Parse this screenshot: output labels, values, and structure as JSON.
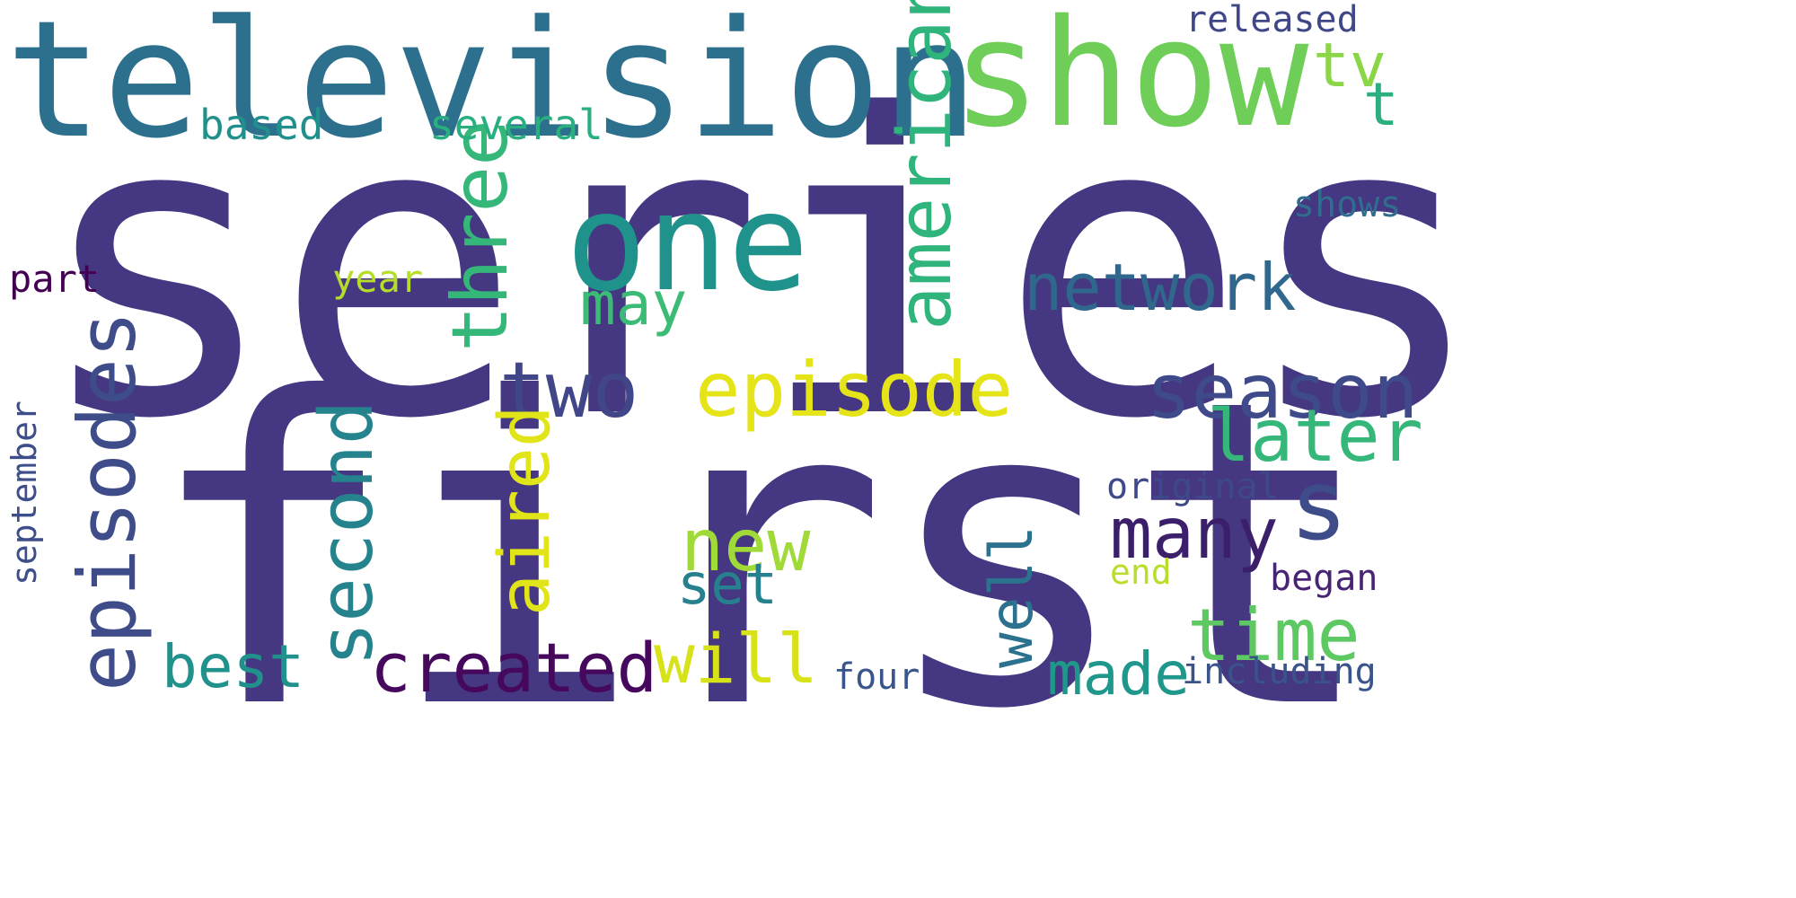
{
  "words": [
    {
      "text": "series",
      "color": "#453781"
    },
    {
      "text": "first",
      "color": "#453781"
    },
    {
      "text": "television",
      "color": "#2d708e"
    },
    {
      "text": "show",
      "color": "#6ece58"
    },
    {
      "text": "one",
      "color": "#20928c"
    },
    {
      "text": "episodes",
      "color": "#3e4c8a"
    },
    {
      "text": "three",
      "color": "#35b779"
    },
    {
      "text": "american",
      "color": "#2fb47c"
    },
    {
      "text": "two",
      "color": "#404688"
    },
    {
      "text": "episode",
      "color": "#e5e419"
    },
    {
      "text": "season",
      "color": "#3e4a89"
    },
    {
      "text": "network",
      "color": "#30678d"
    },
    {
      "text": "second",
      "color": "#25838e"
    },
    {
      "text": "aired",
      "color": "#e0e418"
    },
    {
      "text": "new",
      "color": "#a0da39"
    },
    {
      "text": "many",
      "color": "#3b1f6b"
    },
    {
      "text": "s",
      "color": "#3e4c8a"
    },
    {
      "text": "later",
      "color": "#35b779"
    },
    {
      "text": "time",
      "color": "#5ec962"
    },
    {
      "text": "well",
      "color": "#2c728e"
    },
    {
      "text": "created",
      "color": "#46085c"
    },
    {
      "text": "will",
      "color": "#d8e219"
    },
    {
      "text": "made",
      "color": "#1f988b"
    },
    {
      "text": "best",
      "color": "#21918c"
    },
    {
      "text": "may",
      "color": "#3bbb75"
    },
    {
      "text": "tv",
      "color": "#8bd646"
    },
    {
      "text": "t",
      "color": "#2ab07f"
    },
    {
      "text": "set",
      "color": "#27808e"
    },
    {
      "text": "based",
      "color": "#21908d"
    },
    {
      "text": "several",
      "color": "#29af7f"
    },
    {
      "text": "released",
      "color": "#3f4788"
    },
    {
      "text": "shows",
      "color": "#2f6c8e"
    },
    {
      "text": "part",
      "color": "#440154"
    },
    {
      "text": "year",
      "color": "#b5de2b"
    },
    {
      "text": "september",
      "color": "#3d4e8a"
    },
    {
      "text": "original",
      "color": "#3f4889"
    },
    {
      "text": "end",
      "color": "#b8de29"
    },
    {
      "text": "began",
      "color": "#482475"
    },
    {
      "text": "four",
      "color": "#3a548c"
    },
    {
      "text": "including",
      "color": "#3a538b"
    }
  ]
}
